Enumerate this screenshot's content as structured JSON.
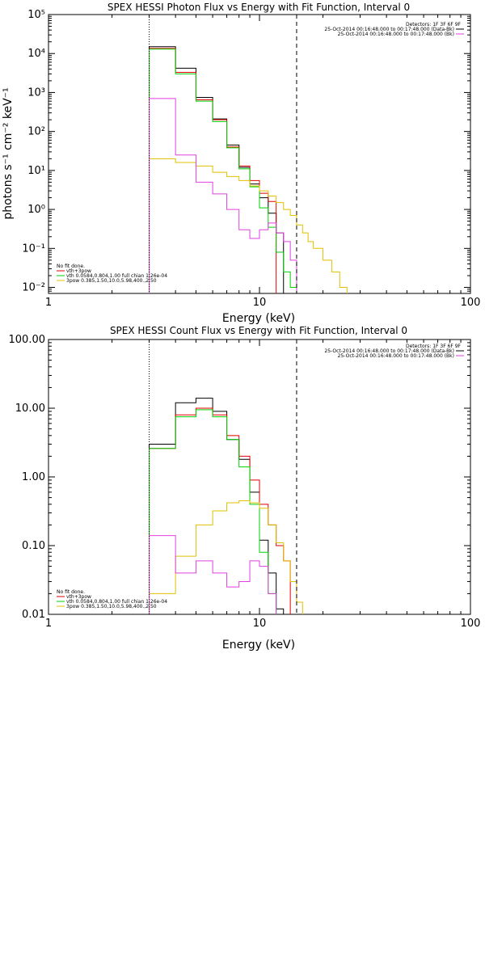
{
  "chart_data": [
    {
      "type": "line",
      "title": "SPEX HESSI Photon Flux vs Energy with Fit Function, Interval 0",
      "xlabel": "Energy (keV)",
      "ylabel": "photons s⁻¹ cm⁻² keV⁻¹",
      "xscale": "log",
      "yscale": "log",
      "xlim": [
        1,
        100
      ],
      "ylim": [
        0.007,
        100000
      ],
      "x_ticks": [
        "1",
        "10",
        "100"
      ],
      "y_ticks": [
        "10⁻²",
        "10⁻¹",
        "10⁰",
        "10¹",
        "10²",
        "10³",
        "10⁴",
        "10⁵"
      ],
      "vlines": [
        {
          "x": 3,
          "style": "dotted"
        },
        {
          "x": 15,
          "style": "dashed"
        }
      ],
      "legend_topright": {
        "header": "Detectors: 1F 3F 6F 9F",
        "entries": [
          {
            "label": "25-Oct-2014 00:16:48.000 to 00:17:48.000 (Data-Bk)",
            "color": "#000000"
          },
          {
            "label": "25-Oct-2014 00:16:48.000 to 00:17:48.000 (Bk)",
            "color": "#e040e0"
          }
        ]
      },
      "legend_bottomleft": {
        "header": "No fit done.",
        "entries": [
          {
            "label": "vth+3pow",
            "color": "#e00000"
          },
          {
            "label": "vth 0.0584,0.804,1.00  full chian 1.26e-04",
            "color": "#00d000"
          },
          {
            "label": "3pow 0.385,1.50,10.0,5.98,400.,2.50",
            "color": "#e0c000"
          }
        ]
      },
      "bin_edges": [
        3,
        4,
        5,
        6,
        7,
        8,
        9,
        10,
        11,
        12,
        13,
        14,
        15,
        16,
        17,
        18,
        20,
        22,
        24,
        26,
        28
      ],
      "series": [
        {
          "color": "#000000",
          "values": [
            15000,
            4200,
            750,
            210,
            45,
            12,
            4.5,
            2,
            0.8,
            0.25,
            null,
            null,
            null,
            null,
            null,
            null,
            null,
            null,
            null,
            null
          ]
        },
        {
          "color": "#e00000",
          "values": [
            13500,
            3300,
            650,
            200,
            40,
            13,
            5.5,
            2.6,
            1.6,
            null,
            null,
            null,
            null,
            null,
            null,
            null,
            null,
            null,
            null,
            null
          ]
        },
        {
          "color": "#00d000",
          "values": [
            13000,
            3000,
            600,
            180,
            38,
            11,
            3.8,
            1.1,
            0.35,
            0.08,
            0.025,
            0.01,
            null,
            null,
            null,
            null,
            null,
            null,
            null,
            null
          ]
        },
        {
          "color": "#e0c000",
          "values": [
            20,
            16,
            13,
            9,
            7,
            5.5,
            4,
            3,
            2.2,
            1.5,
            1,
            0.7,
            0.4,
            0.25,
            0.15,
            0.1,
            0.05,
            0.025,
            0.01,
            null
          ]
        },
        {
          "color": "#e040e0",
          "values": [
            700,
            25,
            5,
            2.5,
            1,
            0.3,
            0.18,
            0.3,
            0.45,
            0.25,
            0.15,
            0.05,
            null,
            null,
            null,
            null,
            null,
            null,
            null,
            null
          ]
        }
      ]
    },
    {
      "type": "line",
      "title": "SPEX HESSI Count Flux vs Energy with Fit Function, Interval 0",
      "xlabel": "Energy (keV)",
      "ylabel": "",
      "xscale": "log",
      "yscale": "log",
      "xlim": [
        1,
        100
      ],
      "ylim": [
        0.01,
        100
      ],
      "x_ticks": [
        "1",
        "10",
        "100"
      ],
      "y_ticks": [
        "0.01",
        "0.10",
        "1.00",
        "10.00",
        "100.00"
      ],
      "vlines": [
        {
          "x": 3,
          "style": "dotted"
        },
        {
          "x": 15,
          "style": "dashed"
        }
      ],
      "legend_topright": {
        "header": "Detectors: 1F 3F 6F 9F",
        "entries": [
          {
            "label": "25-Oct-2014 00:16:48.000 to 00:17:48.000 (Data-Bk)",
            "color": "#000000"
          },
          {
            "label": "25-Oct-2014 00:16:48.000 to 00:17:48.000 (Bk)",
            "color": "#e040e0"
          }
        ]
      },
      "legend_bottomleft": {
        "header": "No fit done.",
        "entries": [
          {
            "label": "vth+3pow",
            "color": "#e00000"
          },
          {
            "label": "vth 0.0584,0.804,1.00  full chian 1.26e-04",
            "color": "#00d000"
          },
          {
            "label": "3pow 0.385,1.50,10.0,5.98,400.,2.50",
            "color": "#e0c000"
          }
        ]
      },
      "bin_edges": [
        3,
        4,
        5,
        6,
        7,
        8,
        9,
        10,
        11,
        12,
        13,
        14,
        15,
        16,
        17,
        18,
        20
      ],
      "series": [
        {
          "color": "#000000",
          "values": [
            3,
            12,
            14,
            9,
            3.5,
            1.8,
            0.6,
            0.12,
            0.04,
            0.012,
            null,
            null,
            null,
            null,
            null,
            null
          ]
        },
        {
          "color": "#e00000",
          "values": [
            2.6,
            8,
            10,
            8,
            4,
            2,
            0.9,
            0.4,
            0.2,
            0.1,
            0.06,
            null,
            null,
            null,
            null,
            null
          ]
        },
        {
          "color": "#00d000",
          "values": [
            2.6,
            7.5,
            9.5,
            7.5,
            3.5,
            1.4,
            0.4,
            0.08,
            0.02,
            null,
            null,
            null,
            null,
            null,
            null,
            null
          ]
        },
        {
          "color": "#e0c000",
          "values": [
            0.02,
            0.07,
            0.2,
            0.32,
            0.42,
            0.45,
            0.42,
            0.35,
            0.2,
            0.11,
            0.06,
            0.03,
            0.015,
            null,
            null,
            null
          ]
        },
        {
          "color": "#e040e0",
          "values": [
            0.14,
            0.04,
            0.06,
            0.04,
            0.025,
            0.03,
            0.06,
            0.05,
            0.02,
            null,
            null,
            null,
            null,
            null,
            null,
            null
          ]
        }
      ]
    }
  ]
}
